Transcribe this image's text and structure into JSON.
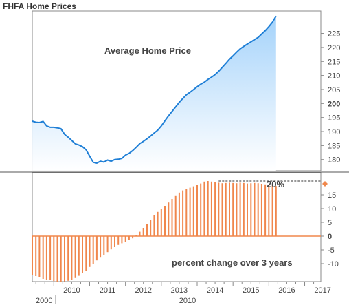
{
  "title": "FHFA Home Prices",
  "colors": {
    "price_line": "#1f7fd6",
    "price_fill_top": "#9fd0fa",
    "bar": "#f0874c",
    "marker": "#f0874c",
    "frame": "#7a7a7a"
  },
  "chart_data": [
    {
      "type": "area",
      "annotation": "Average Home Price",
      "ylim": [
        176,
        233
      ],
      "yticks": [
        180,
        185,
        190,
        195,
        200,
        205,
        210,
        215,
        220,
        225
      ],
      "xlim": [
        2009.4,
        2017.45
      ],
      "x": [
        2009.4,
        2009.5,
        2009.6,
        2009.7,
        2009.8,
        2009.9,
        2010.0,
        2010.1,
        2010.2,
        2010.3,
        2010.4,
        2010.5,
        2010.6,
        2010.7,
        2010.8,
        2010.9,
        2011.0,
        2011.1,
        2011.2,
        2011.3,
        2011.4,
        2011.5,
        2011.6,
        2011.7,
        2011.8,
        2011.9,
        2012.0,
        2012.1,
        2012.2,
        2012.3,
        2012.4,
        2012.5,
        2012.6,
        2012.7,
        2012.8,
        2012.9,
        2013.0,
        2013.1,
        2013.2,
        2013.3,
        2013.4,
        2013.5,
        2013.6,
        2013.7,
        2013.8,
        2013.9,
        2014.0,
        2014.1,
        2014.2,
        2014.3,
        2014.4,
        2014.5,
        2014.6,
        2014.7,
        2014.8,
        2014.9,
        2015.0,
        2015.1,
        2015.2,
        2015.3,
        2015.4,
        2015.5,
        2015.6,
        2015.7,
        2015.8,
        2015.9,
        2016.0,
        2016.1,
        2016.2
      ],
      "values": [
        193.7,
        193.3,
        193.2,
        193.6,
        192.0,
        191.5,
        191.5,
        191.3,
        191.0,
        189.0,
        188.0,
        186.8,
        185.6,
        185.2,
        184.6,
        183.5,
        181.2,
        179.0,
        178.7,
        179.4,
        179.1,
        179.8,
        179.4,
        180.0,
        180.1,
        180.4,
        181.6,
        182.2,
        183.2,
        184.4,
        185.7,
        186.5,
        187.4,
        188.4,
        189.5,
        190.5,
        192.0,
        193.8,
        195.6,
        197.2,
        198.8,
        200.4,
        201.8,
        203.1,
        204.0,
        205.0,
        206.0,
        206.9,
        207.6,
        208.6,
        209.4,
        210.3,
        211.5,
        212.9,
        214.3,
        215.8,
        217.0,
        218.3,
        219.5,
        220.4,
        221.2,
        222.0,
        222.8,
        223.6,
        224.8,
        226.0,
        227.4,
        229.0,
        231.2
      ]
    },
    {
      "type": "bar",
      "annotation": "percent change over 3 years",
      "reference_label": "20%",
      "reference_value": 20,
      "marker_value": 19,
      "ylim": [
        -16.5,
        23
      ],
      "yticks": [
        -10,
        -5,
        0,
        5,
        10,
        15
      ],
      "xlim": [
        2009.4,
        2017.45
      ],
      "x": [
        2009.4,
        2009.5,
        2009.6,
        2009.7,
        2009.8,
        2009.9,
        2010.0,
        2010.1,
        2010.2,
        2010.3,
        2010.4,
        2010.5,
        2010.6,
        2010.7,
        2010.8,
        2010.9,
        2011.0,
        2011.1,
        2011.2,
        2011.3,
        2011.4,
        2011.5,
        2011.6,
        2011.7,
        2011.8,
        2011.9,
        2012.0,
        2012.1,
        2012.2,
        2012.3,
        2012.4,
        2012.5,
        2012.6,
        2012.7,
        2012.8,
        2012.9,
        2013.0,
        2013.1,
        2013.2,
        2013.3,
        2013.4,
        2013.5,
        2013.6,
        2013.7,
        2013.8,
        2013.9,
        2014.0,
        2014.1,
        2014.2,
        2014.3,
        2014.4,
        2014.5,
        2014.6,
        2014.7,
        2014.8,
        2014.9,
        2015.0,
        2015.1,
        2015.2,
        2015.3,
        2015.4,
        2015.5,
        2015.6,
        2015.7,
        2015.8,
        2015.9,
        2016.0,
        2016.1,
        2016.2
      ],
      "values": [
        -14.0,
        -14.5,
        -15.0,
        -15.5,
        -15.8,
        -16.0,
        -16.3,
        -16.5,
        -16.5,
        -16.4,
        -16.2,
        -15.8,
        -15.2,
        -14.4,
        -13.5,
        -12.5,
        -11.2,
        -10.0,
        -8.8,
        -7.8,
        -6.8,
        -5.8,
        -4.8,
        -4.0,
        -3.2,
        -2.6,
        -2.0,
        -1.4,
        -0.8,
        0.4,
        1.6,
        3.0,
        4.5,
        6.0,
        7.5,
        8.8,
        10.0,
        11.0,
        12.2,
        13.5,
        14.8,
        15.8,
        16.6,
        17.2,
        17.6,
        18.1,
        18.6,
        19.1,
        19.8,
        20.0,
        19.8,
        19.6,
        19.4,
        19.2,
        19.3,
        19.4,
        19.3,
        19.2,
        19.4,
        19.3,
        19.1,
        19.2,
        19.3,
        19.2,
        19.0,
        18.8,
        18.6,
        18.4,
        18.2
      ]
    }
  ],
  "x_axis": {
    "quarter_labels": [
      "2010",
      "2011",
      "2012",
      "2013",
      "2014",
      "2015",
      "2016",
      "2017"
    ],
    "year_labels": [
      "2000",
      "2010"
    ]
  }
}
